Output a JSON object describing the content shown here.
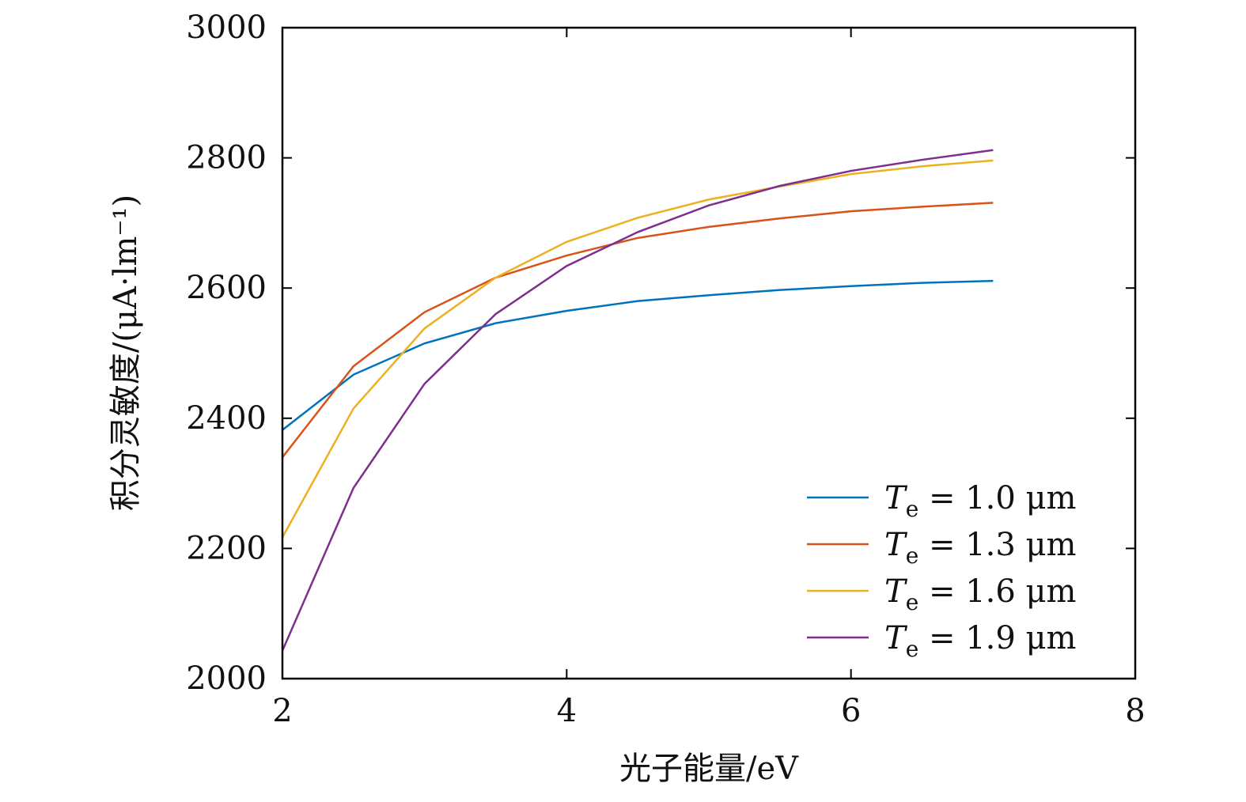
{
  "chart_data": {
    "type": "line",
    "title": "",
    "xlabel": "光子能量/eV",
    "ylabel": "积分灵敏度/(μA·lm⁻¹)",
    "xlim": [
      2,
      8
    ],
    "ylim": [
      2000,
      3000
    ],
    "xticks": [
      "2",
      "4",
      "6",
      "8"
    ],
    "yticks": [
      "2000",
      "2200",
      "2400",
      "2600",
      "2800",
      "3000"
    ],
    "grid": false,
    "legend_position": "bottom-right",
    "x": [
      2,
      2.5,
      3,
      3.5,
      4,
      4.5,
      5,
      5.5,
      6,
      6.5,
      7
    ],
    "series": [
      {
        "name": "Te = 1.0 μm",
        "color": "#0072BD",
        "values": [
          2382,
          2467,
          2515,
          2546,
          2565,
          2580,
          2589,
          2597,
          2603,
          2608,
          2611
        ]
      },
      {
        "name": "Te = 1.3 μm",
        "color": "#D95319",
        "values": [
          2340,
          2480,
          2563,
          2616,
          2650,
          2677,
          2694,
          2707,
          2718,
          2725,
          2731
        ]
      },
      {
        "name": "Te = 1.6 μm",
        "color": "#EDB120",
        "values": [
          2217,
          2415,
          2538,
          2616,
          2671,
          2708,
          2736,
          2756,
          2775,
          2787,
          2796
        ]
      },
      {
        "name": "Te = 1.9 μm",
        "color": "#7E2F8E",
        "values": [
          2043,
          2293,
          2453,
          2560,
          2634,
          2686,
          2727,
          2757,
          2780,
          2797,
          2812
        ]
      }
    ]
  }
}
